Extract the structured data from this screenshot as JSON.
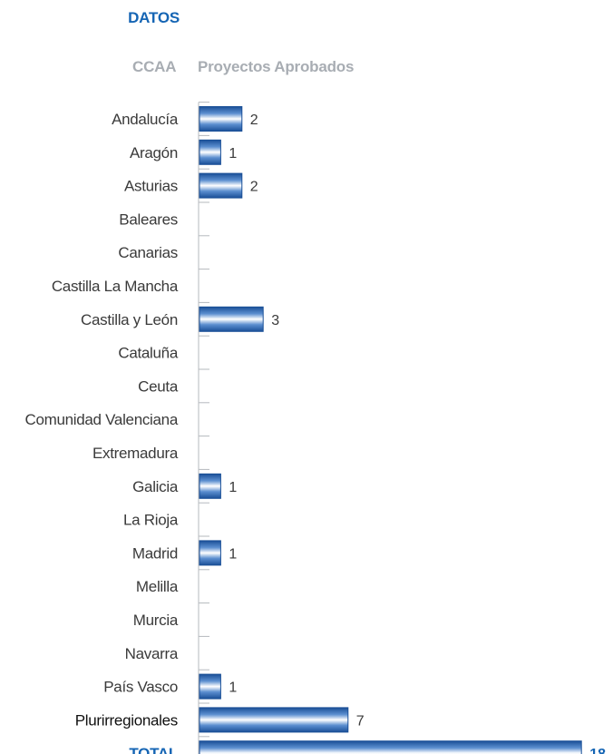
{
  "header": {
    "section_title": "DATOS",
    "col_region": "CCAA",
    "col_projects": "Proyectos Aprobados"
  },
  "colors": {
    "bar_dark": "#1a4f97",
    "bar_mid": "#5c8fd0",
    "bar_light": "#ffffff",
    "accent_text": "#1565b4",
    "header_gray": "#a8adb3",
    "axis": "#b5b9be"
  },
  "chart_data": {
    "type": "bar",
    "orientation": "horizontal",
    "categories": [
      "Andalucía",
      "Aragón",
      "Asturias",
      "Baleares",
      "Canarias",
      "Castilla La Mancha",
      "Castilla y León",
      "Cataluña",
      "Ceuta",
      "Comunidad Valenciana",
      "Extremadura",
      "Galicia",
      "La Rioja",
      "Madrid",
      "Melilla",
      "Murcia",
      "Navarra",
      "País Vasco",
      "Plurirregionales",
      "TOTAL"
    ],
    "values": [
      2,
      1,
      2,
      null,
      null,
      null,
      3,
      null,
      null,
      null,
      null,
      1,
      null,
      1,
      null,
      null,
      null,
      1,
      7,
      18
    ],
    "xlabel": "Proyectos Aprobados",
    "ylabel": "CCAA",
    "xlim": [
      0,
      18
    ],
    "grid": false,
    "legend": "none"
  }
}
